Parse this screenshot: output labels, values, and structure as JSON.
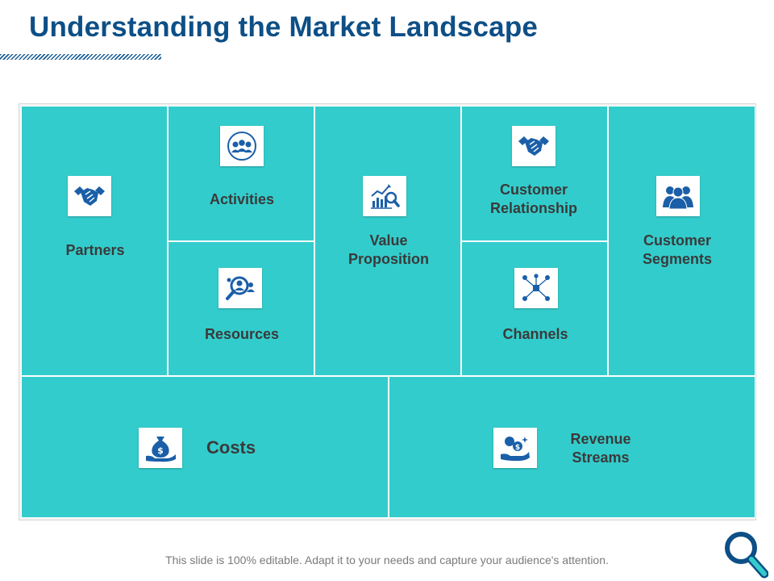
{
  "title": "Understanding the Market Landscape",
  "blocks": {
    "partners": {
      "label": "Partners",
      "icon": "handshake-icon"
    },
    "activities": {
      "label": "Activities",
      "icon": "team-cycle-icon"
    },
    "resources": {
      "label": "Resources",
      "icon": "people-search-icon"
    },
    "value_proposition": {
      "label_line1": "Value",
      "label_line2": "Proposition",
      "icon": "chart-magnifier-icon"
    },
    "customer_relationship": {
      "label_line1": "Customer",
      "label_line2": "Relationship",
      "icon": "handshake-icon"
    },
    "channels": {
      "label": "Channels",
      "icon": "network-icon"
    },
    "customer_segments": {
      "label_line1": "Customer",
      "label_line2": "Segments",
      "icon": "group-icon"
    },
    "costs": {
      "label": "Costs",
      "icon": "money-bag-hand-icon"
    },
    "revenue_streams": {
      "label_line1": "Revenue",
      "label_line2": "Streams",
      "icon": "coins-hand-icon"
    }
  },
  "footer": "This slide is 100% editable. Adapt it to your needs and capture your audience's attention.",
  "colors": {
    "accent": "#0d4f86",
    "panel": "#33cccc",
    "icon": "#1a5fa8",
    "text": "#3a3a3a"
  }
}
